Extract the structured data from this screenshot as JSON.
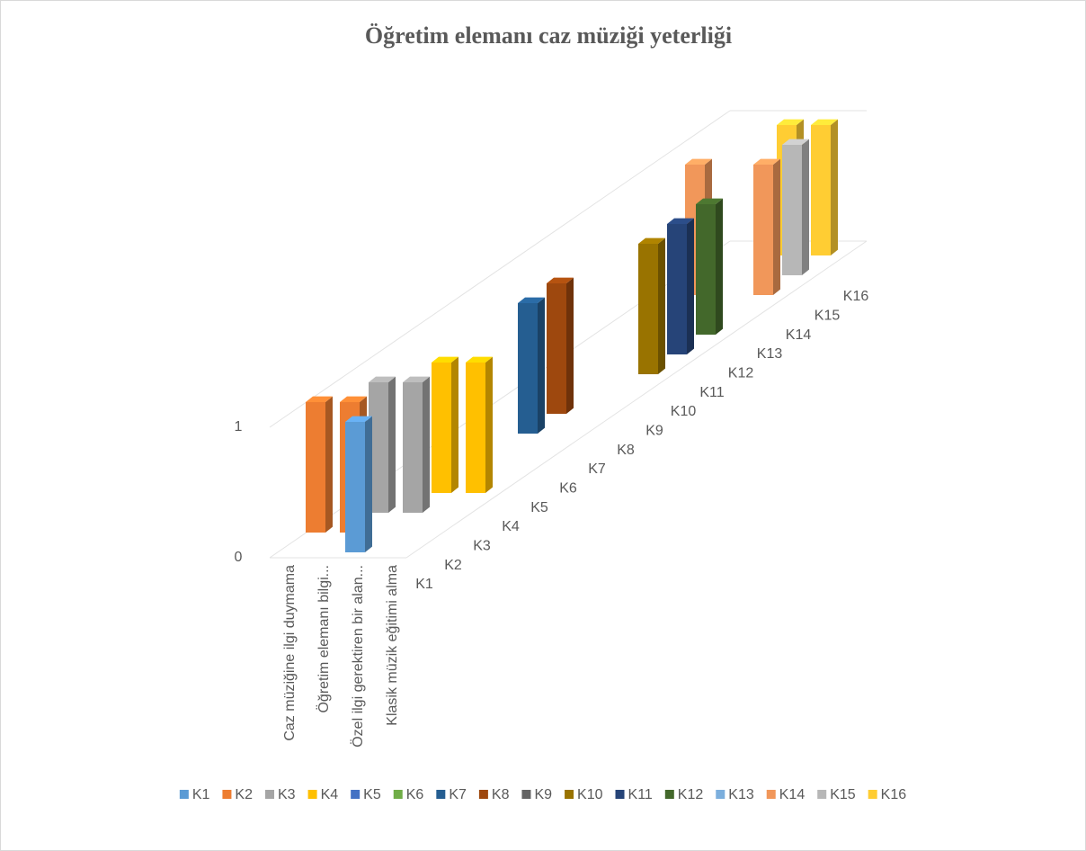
{
  "chart_data": {
    "type": "bar3d",
    "title": "Öğretim elemanı caz müziği yeterliği",
    "categories": [
      "Caz müziğine ilgi duymama",
      "Öğretim elemanı bilgi...",
      "Özel ilgi gerektiren bir alan...",
      "Klasik müzik eğitimi alma"
    ],
    "series": [
      {
        "name": "K1",
        "color": "#5b9bd5",
        "values": [
          0,
          0,
          1,
          0
        ]
      },
      {
        "name": "K2",
        "color": "#ed7d31",
        "values": [
          1,
          1,
          0,
          0
        ]
      },
      {
        "name": "K3",
        "color": "#a5a5a5",
        "values": [
          0,
          1,
          1,
          0
        ]
      },
      {
        "name": "K4",
        "color": "#ffc000",
        "values": [
          0,
          0,
          1,
          1
        ]
      },
      {
        "name": "K5",
        "color": "#4472c4",
        "values": [
          0,
          0,
          0,
          0
        ]
      },
      {
        "name": "K6",
        "color": "#70ad47",
        "values": [
          0,
          0,
          0,
          0
        ]
      },
      {
        "name": "K7",
        "color": "#255e91",
        "values": [
          0,
          0,
          1,
          0
        ]
      },
      {
        "name": "K8",
        "color": "#9e480e",
        "values": [
          0,
          0,
          1,
          0
        ]
      },
      {
        "name": "K9",
        "color": "#636363",
        "values": [
          0,
          0,
          0,
          0
        ]
      },
      {
        "name": "K10",
        "color": "#997300",
        "values": [
          0,
          0,
          0,
          1
        ]
      },
      {
        "name": "K11",
        "color": "#264478",
        "values": [
          0,
          0,
          0,
          1
        ]
      },
      {
        "name": "K12",
        "color": "#43682b",
        "values": [
          0,
          0,
          0,
          1
        ]
      },
      {
        "name": "K13",
        "color": "#7cafdd",
        "values": [
          0,
          0,
          0,
          0
        ]
      },
      {
        "name": "K14",
        "color": "#f1975a",
        "values": [
          0,
          1,
          0,
          1
        ]
      },
      {
        "name": "K15",
        "color": "#b7b7b7",
        "values": [
          0,
          0,
          0,
          1
        ]
      },
      {
        "name": "K16",
        "color": "#ffcd33",
        "values": [
          0,
          0,
          1,
          1
        ]
      }
    ],
    "ylim": [
      0,
      1
    ],
    "yticks": [
      0,
      1
    ],
    "grid": true,
    "legend": "bottom"
  }
}
